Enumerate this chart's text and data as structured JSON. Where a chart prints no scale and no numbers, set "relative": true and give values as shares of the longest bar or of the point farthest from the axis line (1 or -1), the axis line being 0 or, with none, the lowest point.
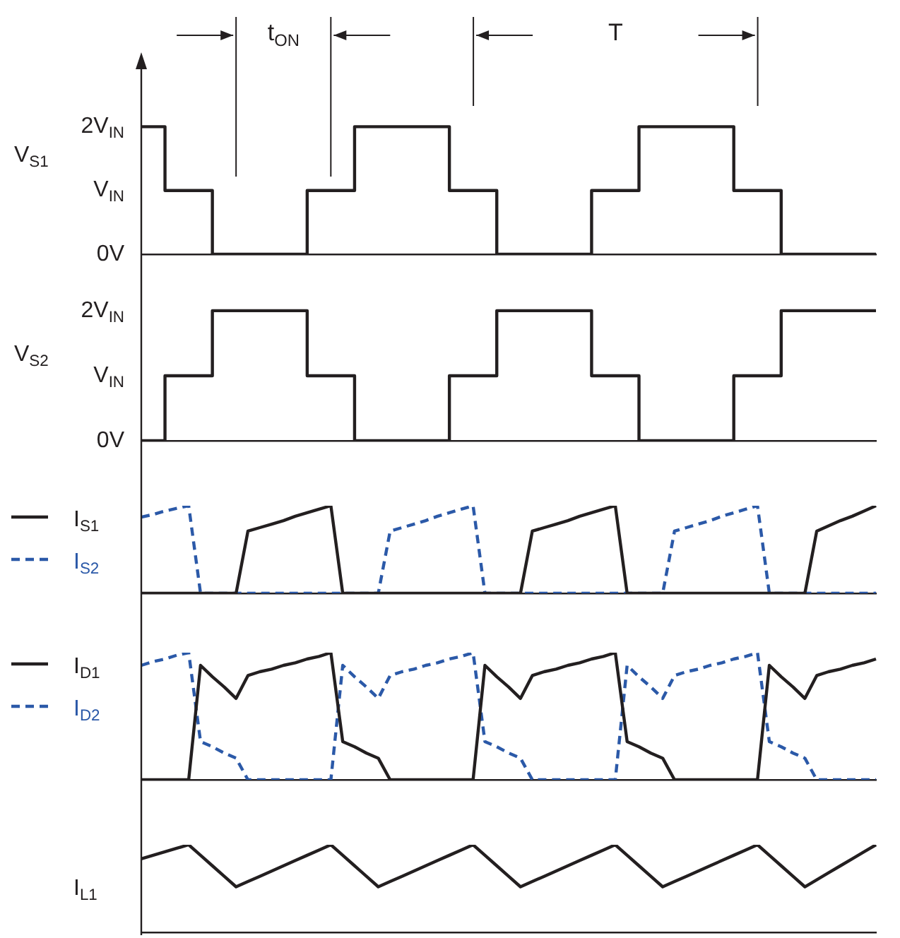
{
  "chart_data": [
    {
      "type": "step",
      "ylabel": "V$_{S1}$",
      "categories": [
        null,
        null,
        null,
        null,
        null,
        null,
        null,
        null,
        null,
        null,
        null,
        null,
        null,
        null,
        null,
        null,
        null,
        null,
        null,
        null,
        null,
        null,
        null,
        null,
        null,
        null,
        null,
        null,
        null,
        null,
        null,
        null
      ],
      "ylim": [
        0,
        3.1
      ],
      "yticks": [
        {
          "value": 0,
          "label": "0V"
        },
        {
          "value": 1,
          "label": "V$_{IN}$"
        },
        {
          "value": 2,
          "label": "2V$_{IN}$"
        }
      ],
      "tick_labels": "y",
      "annotations": [
        "t$_{ON}$",
        "T"
      ],
      "series": [
        {
          "color": "#231f20",
          "values": [
            2,
            2,
            1,
            1,
            0,
            0,
            0,
            0,
            1,
            1,
            2,
            2,
            2,
            2,
            1,
            1,
            0,
            0,
            0,
            0,
            1,
            1,
            2,
            2,
            2,
            2,
            1,
            1,
            0,
            0,
            0,
            0
          ]
        }
      ]
    },
    {
      "type": "step",
      "ylabel": "V$_{S2}$",
      "categories": [
        null,
        null,
        null,
        null,
        null,
        null,
        null,
        null,
        null,
        null,
        null,
        null,
        null,
        null,
        null,
        null,
        null,
        null,
        null,
        null,
        null,
        null,
        null,
        null,
        null,
        null,
        null,
        null,
        null,
        null,
        null,
        null
      ],
      "ylim": [
        0,
        2.65
      ],
      "yticks": [
        {
          "value": 0,
          "label": "0V"
        },
        {
          "value": 1,
          "label": "V$_{IN}$"
        },
        {
          "value": 2,
          "label": "2V$_{IN}$"
        }
      ],
      "tick_labels": "y",
      "series": [
        {
          "color": "#231f20",
          "values": [
            0,
            0,
            1,
            1,
            2,
            2,
            2,
            2,
            1,
            1,
            0,
            0,
            0,
            0,
            1,
            1,
            2,
            2,
            2,
            2,
            1,
            1,
            0,
            0,
            0,
            0,
            1,
            1,
            2,
            2,
            2,
            2
          ]
        }
      ]
    },
    {
      "type": "line",
      "relative": true,
      "categories": [
        null,
        null,
        null,
        null,
        null,
        null,
        null,
        null,
        null,
        null,
        null,
        null,
        null,
        null,
        null,
        null,
        null,
        null,
        null,
        null,
        null,
        null,
        null,
        null,
        null,
        null,
        null,
        null,
        null,
        null,
        null,
        null,
        null,
        null,
        null,
        null,
        null,
        null,
        null,
        null,
        null,
        null,
        null,
        null,
        null,
        null,
        null,
        null,
        null,
        null,
        null,
        null,
        null,
        null,
        null,
        null,
        null,
        null,
        null,
        null,
        null,
        null,
        null
      ],
      "tick_labels": false,
      "legend": "left",
      "series": [
        {
          "name": "I$_{S1}$",
          "color": "#231f20",
          "line_style": "solid",
          "values": [
            0,
            0,
            0,
            0,
            0,
            0,
            0,
            0,
            0,
            0.71,
            0.75,
            0.79,
            0.83,
            0.88,
            0.92,
            0.96,
            1,
            0,
            0,
            0,
            0,
            0,
            0,
            0,
            0,
            0,
            0,
            0,
            0,
            0,
            0,
            0,
            0,
            0.71,
            0.75,
            0.79,
            0.83,
            0.88,
            0.92,
            0.96,
            1,
            0,
            0,
            0,
            0,
            0,
            0,
            0,
            0,
            0,
            0,
            0,
            0,
            0,
            0,
            0,
            0,
            0.71,
            0.77,
            0.83,
            0.88,
            0.94,
            1
          ]
        },
        {
          "name": "I$_{S2}$",
          "color": "#2b59a8",
          "line_style": "dashed",
          "values": [
            0.87,
            0.9,
            0.94,
            0.97,
            1,
            0,
            0,
            0,
            0,
            0,
            0,
            0,
            0,
            0,
            0,
            0,
            0,
            0,
            0,
            0,
            0,
            0.71,
            0.75,
            0.79,
            0.83,
            0.88,
            0.92,
            0.96,
            1,
            0,
            0,
            0,
            0,
            0,
            0,
            0,
            0,
            0,
            0,
            0,
            0,
            0,
            0,
            0,
            0,
            0.71,
            0.75,
            0.79,
            0.83,
            0.88,
            0.92,
            0.96,
            1,
            0,
            0,
            0,
            0,
            0,
            0,
            0,
            0,
            0,
            0
          ]
        }
      ]
    },
    {
      "type": "line",
      "relative": true,
      "categories": [
        null,
        null,
        null,
        null,
        null,
        null,
        null,
        null,
        null,
        null,
        null,
        null,
        null,
        null,
        null,
        null,
        null,
        null,
        null,
        null,
        null,
        null,
        null,
        null,
        null,
        null,
        null,
        null,
        null,
        null,
        null,
        null,
        null,
        null,
        null,
        null,
        null,
        null,
        null,
        null,
        null,
        null,
        null,
        null,
        null,
        null,
        null,
        null,
        null,
        null,
        null,
        null,
        null,
        null,
        null,
        null,
        null,
        null,
        null,
        null,
        null,
        null,
        null
      ],
      "tick_labels": false,
      "legend": "left",
      "series": [
        {
          "name": "I$_{D1}$",
          "color": "#231f20",
          "line_style": "solid",
          "values": [
            0,
            0,
            0,
            0,
            0,
            0.9,
            0.81,
            0.73,
            0.64,
            0.82,
            0.85,
            0.87,
            0.9,
            0.92,
            0.95,
            0.97,
            1,
            0.3,
            0.26,
            0.21,
            0.17,
            0,
            0,
            0,
            0,
            0,
            0,
            0,
            0,
            0.9,
            0.81,
            0.73,
            0.64,
            0.82,
            0.85,
            0.87,
            0.9,
            0.92,
            0.95,
            0.97,
            1,
            0.3,
            0.26,
            0.21,
            0.17,
            0,
            0,
            0,
            0,
            0,
            0,
            0,
            0,
            0.9,
            0.81,
            0.73,
            0.64,
            0.82,
            0.85,
            0.87,
            0.9,
            0.92,
            0.95
          ]
        },
        {
          "name": "I$_{D2}$",
          "color": "#2b59a8",
          "line_style": "dashed",
          "values": [
            0.9,
            0.93,
            0.95,
            0.98,
            1,
            0.3,
            0.26,
            0.21,
            0.17,
            0,
            0,
            0,
            0,
            0,
            0,
            0,
            0,
            0.9,
            0.81,
            0.73,
            0.64,
            0.82,
            0.85,
            0.87,
            0.9,
            0.92,
            0.95,
            0.97,
            1,
            0.3,
            0.26,
            0.21,
            0.17,
            0,
            0,
            0,
            0,
            0,
            0,
            0,
            0,
            0.9,
            0.81,
            0.73,
            0.64,
            0.82,
            0.85,
            0.87,
            0.9,
            0.92,
            0.95,
            0.97,
            1,
            0.3,
            0.26,
            0.21,
            0.17,
            0,
            0,
            0,
            0,
            0,
            0
          ]
        }
      ]
    },
    {
      "type": "line",
      "relative": true,
      "categories": [
        null,
        null,
        null,
        null,
        null,
        null,
        null,
        null,
        null,
        null,
        null,
        null,
        null,
        null,
        null,
        null,
        null,
        null,
        null,
        null,
        null,
        null,
        null,
        null,
        null,
        null,
        null,
        null,
        null,
        null,
        null,
        null,
        null,
        null,
        null,
        null,
        null,
        null,
        null,
        null,
        null,
        null,
        null,
        null,
        null,
        null,
        null,
        null,
        null,
        null,
        null,
        null,
        null,
        null,
        null,
        null,
        null,
        null,
        null,
        null,
        null,
        null,
        null
      ],
      "tick_labels": false,
      "series": [
        {
          "name": "I$_{L1}$",
          "color": "#231f20",
          "values": [
            0.84,
            0.88,
            0.92,
            0.96,
            1,
            0.88,
            0.76,
            0.64,
            0.52,
            0.58,
            0.64,
            0.7,
            0.76,
            0.82,
            0.88,
            0.94,
            1,
            0.88,
            0.76,
            0.64,
            0.52,
            0.58,
            0.64,
            0.7,
            0.76,
            0.82,
            0.88,
            0.94,
            1,
            0.88,
            0.76,
            0.64,
            0.52,
            0.58,
            0.64,
            0.7,
            0.76,
            0.82,
            0.88,
            0.94,
            1,
            0.88,
            0.76,
            0.64,
            0.52,
            0.58,
            0.64,
            0.7,
            0.76,
            0.82,
            0.88,
            0.94,
            1,
            0.88,
            0.76,
            0.64,
            0.52,
            0.6,
            0.68,
            0.76,
            0.84,
            0.92,
            1
          ]
        }
      ]
    }
  ]
}
